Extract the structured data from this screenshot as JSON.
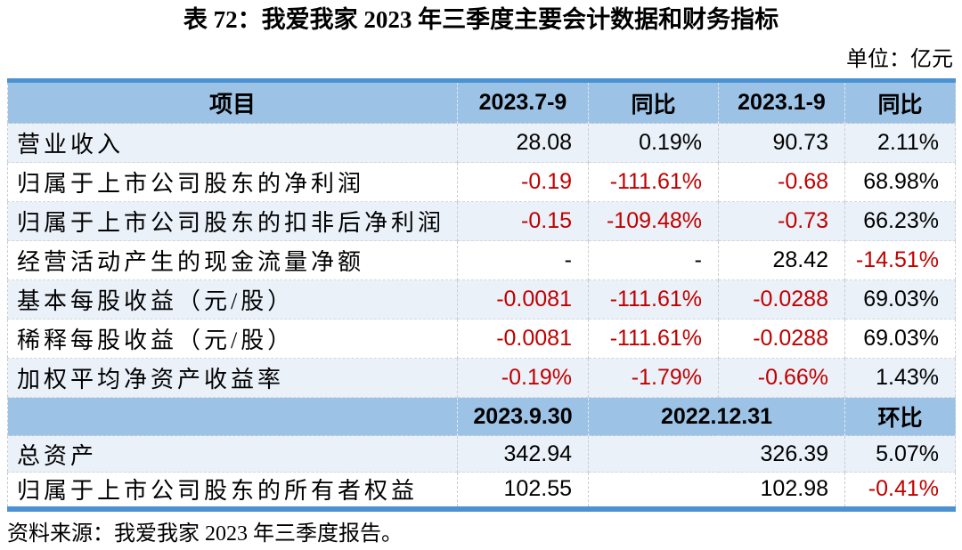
{
  "page": {
    "title": "表 72：我爱我家 2023 年三季度主要会计数据和财务指标",
    "unit_note": "单位：亿元",
    "source_note": "资料来源：我爱我家 2023 年三季度报告。"
  },
  "colors": {
    "accent_bar": "#4C92D2",
    "header_fill": "#9CC2E5",
    "band_fill": "#EAF1F9",
    "negative_value": "#C00000",
    "text": "#000000"
  },
  "table": {
    "header1": [
      "项目",
      "2023.7-9",
      "同比",
      "2023.1-9",
      "同比"
    ],
    "section1_rows": [
      {
        "label": "营业收入",
        "values": [
          "28.08",
          "0.19%",
          "90.73",
          "2.11%"
        ]
      },
      {
        "label": "归属于上市公司股东的净利润",
        "values": [
          "-0.19",
          "-111.61%",
          "-0.68",
          "68.98%"
        ]
      },
      {
        "label": "归属于上市公司股东的扣非后净利润",
        "values": [
          "-0.15",
          "-109.48%",
          "-0.73",
          "66.23%"
        ]
      },
      {
        "label": "经营活动产生的现金流量净额",
        "values": [
          "-",
          "-",
          "28.42",
          "-14.51%"
        ]
      },
      {
        "label": "基本每股收益（元/股）",
        "values": [
          "-0.0081",
          "-111.61%",
          "-0.0288",
          "69.03%"
        ]
      },
      {
        "label": "稀释每股收益（元/股）",
        "values": [
          "-0.0081",
          "-111.61%",
          "-0.0288",
          "69.03%"
        ]
      },
      {
        "label": "加权平均净资产收益率",
        "values": [
          "-0.19%",
          "-1.79%",
          "-0.66%",
          "1.43%"
        ]
      }
    ],
    "header2": [
      "",
      "2023.9.30",
      "2022.12.31",
      "环比"
    ],
    "section2_rows": [
      {
        "label": "总资产",
        "values": [
          "342.94",
          "326.39",
          "5.07%"
        ]
      },
      {
        "label": "归属于上市公司股东的所有者权益",
        "values": [
          "102.55",
          "102.98",
          "-0.41%"
        ]
      }
    ]
  }
}
